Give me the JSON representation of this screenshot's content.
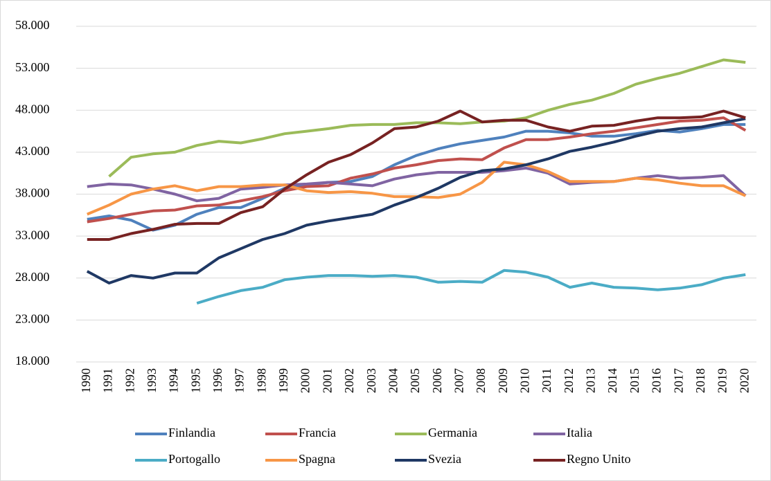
{
  "chart_data": {
    "type": "line",
    "categories": [
      "1990",
      "1991",
      "1992",
      "1993",
      "1994",
      "1995",
      "1996",
      "1997",
      "1998",
      "1999",
      "2000",
      "2001",
      "2002",
      "2003",
      "2004",
      "2005",
      "2006",
      "2007",
      "2008",
      "2009",
      "2010",
      "2011",
      "2012",
      "2013",
      "2014",
      "2015",
      "2016",
      "2017",
      "2018",
      "2019",
      "2020"
    ],
    "series": [
      {
        "name": "Finlandia",
        "color": "#4f81bd",
        "values": [
          35000,
          35400,
          34900,
          33700,
          34300,
          35600,
          36400,
          36400,
          37500,
          38700,
          39100,
          39400,
          39500,
          40100,
          41500,
          42600,
          43400,
          44000,
          44400,
          44800,
          45500,
          45500,
          45300,
          44900,
          44900,
          45200,
          45600,
          45400,
          45800,
          46300,
          46300
        ]
      },
      {
        "name": "Francia",
        "color": "#c0504d",
        "values": [
          34700,
          35100,
          35600,
          36000,
          36100,
          36600,
          36700,
          37200,
          37700,
          38400,
          38900,
          39000,
          39900,
          40400,
          41100,
          41500,
          42000,
          42200,
          42100,
          43500,
          44500,
          44500,
          44800,
          45200,
          45500,
          45900,
          46300,
          46700,
          46800,
          47100,
          45600
        ]
      },
      {
        "name": "Germania",
        "color": "#9bbb59",
        "values": [
          null,
          40100,
          42400,
          42800,
          43000,
          43800,
          44300,
          44100,
          44600,
          45200,
          45500,
          45800,
          46200,
          46300,
          46300,
          46500,
          46500,
          46400,
          46600,
          46700,
          47100,
          48000,
          48700,
          49200,
          50000,
          51100,
          51800,
          52400,
          53200,
          54000,
          53700
        ]
      },
      {
        "name": "Italia",
        "color": "#8064a2",
        "values": [
          38900,
          39200,
          39100,
          38600,
          38000,
          37200,
          37500,
          38600,
          38800,
          39100,
          39200,
          39400,
          39200,
          39000,
          39800,
          40300,
          40600,
          40600,
          40600,
          40800,
          41100,
          40500,
          39200,
          39400,
          39500,
          39900,
          40200,
          39900,
          40000,
          40200,
          37800
        ]
      },
      {
        "name": "Portogallo",
        "color": "#4bacc6",
        "values": [
          null,
          null,
          null,
          null,
          null,
          25000,
          25800,
          26500,
          26900,
          27800,
          28100,
          28300,
          28300,
          28200,
          28300,
          28100,
          27500,
          27600,
          27500,
          28900,
          28700,
          28100,
          26900,
          27400,
          26900,
          26800,
          26600,
          26800,
          27200,
          28000,
          28400
        ]
      },
      {
        "name": "Spagna",
        "color": "#f79646",
        "values": [
          35600,
          36700,
          38000,
          38600,
          39000,
          38400,
          38900,
          38900,
          39100,
          39100,
          38400,
          38200,
          38300,
          38100,
          37700,
          37700,
          37600,
          38000,
          39400,
          41800,
          41500,
          40700,
          39500,
          39500,
          39500,
          39900,
          39700,
          39300,
          39000,
          39000,
          37800
        ]
      },
      {
        "name": "Svezia",
        "color": "#1f3864",
        "values": [
          28800,
          27400,
          28300,
          28000,
          28600,
          28600,
          30400,
          31500,
          32600,
          33300,
          34300,
          34800,
          35200,
          35600,
          36700,
          37600,
          38700,
          40000,
          40800,
          41000,
          41500,
          42200,
          43100,
          43600,
          44200,
          44900,
          45500,
          45800,
          46000,
          46500,
          47000
        ]
      },
      {
        "name": "Regno Unito",
        "color": "#772222",
        "values": [
          32600,
          32600,
          33300,
          33800,
          34400,
          34500,
          34500,
          35800,
          36500,
          38600,
          40300,
          41800,
          42700,
          44100,
          45800,
          46000,
          46700,
          47900,
          46600,
          46800,
          46800,
          46000,
          45500,
          46100,
          46200,
          46700,
          47100,
          47100,
          47200,
          47900,
          47100
        ]
      }
    ],
    "ylim": [
      18000,
      58000
    ],
    "yticks": [
      {
        "value": 18000,
        "label": "18.000"
      },
      {
        "value": 23000,
        "label": "23.000"
      },
      {
        "value": 28000,
        "label": "28.000"
      },
      {
        "value": 33000,
        "label": "33.000"
      },
      {
        "value": 38000,
        "label": "38.000"
      },
      {
        "value": 43000,
        "label": "43.000"
      },
      {
        "value": 48000,
        "label": "48.000"
      },
      {
        "value": 53000,
        "label": "53.000"
      },
      {
        "value": 58000,
        "label": "58.000"
      }
    ],
    "grid": true,
    "legend": "bottom"
  }
}
